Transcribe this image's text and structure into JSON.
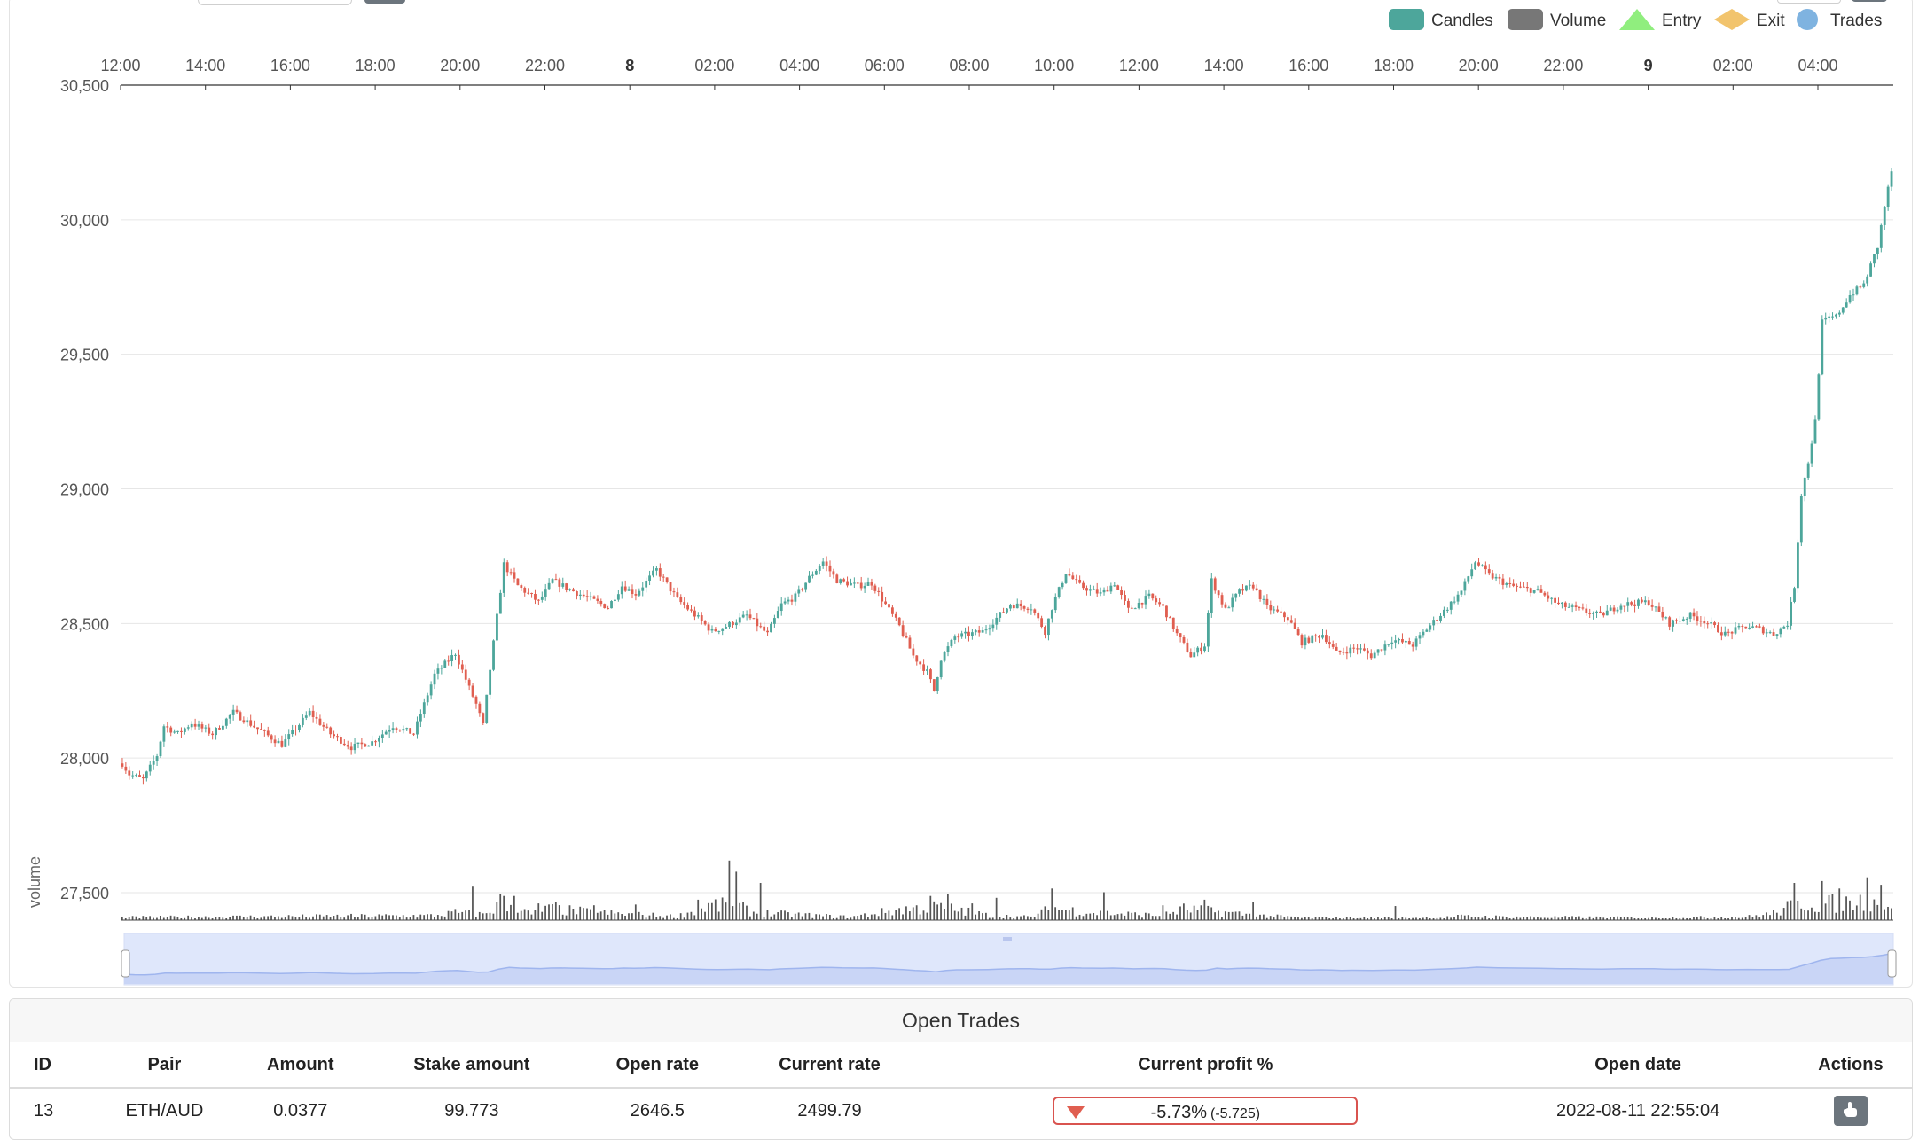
{
  "legend": [
    {
      "label": "Candles",
      "color": "#4da69b",
      "shape": "rect"
    },
    {
      "label": "Volume",
      "color": "#777777",
      "shape": "rect"
    },
    {
      "label": "Entry",
      "color": "#90ee7e",
      "shape": "triangle"
    },
    {
      "label": "Exit",
      "color": "#f2c46d",
      "shape": "diamond"
    },
    {
      "label": "Trades",
      "color": "#7fb3e0",
      "shape": "circle"
    }
  ],
  "colors": {
    "up": "#4da69b",
    "down": "#e05e50",
    "volume": "#555555",
    "zoom_fill": "#dfe7fb",
    "zoom_line": "#9fb5ee"
  },
  "chart_data": {
    "type": "candlestick",
    "x_tick_labels": [
      "12:00",
      "14:00",
      "16:00",
      "18:00",
      "20:00",
      "22:00",
      "8",
      "02:00",
      "04:00",
      "06:00",
      "08:00",
      "10:00",
      "12:00",
      "14:00",
      "16:00",
      "18:00",
      "20:00",
      "22:00",
      "9",
      "02:00",
      "04:00"
    ],
    "x_tick_bold": [
      false,
      false,
      false,
      false,
      false,
      false,
      true,
      false,
      false,
      false,
      false,
      false,
      false,
      false,
      false,
      false,
      false,
      false,
      true,
      false,
      false
    ],
    "ylim": [
      27400,
      30500
    ],
    "y_ticks": [
      27500,
      28000,
      28500,
      29000,
      29500,
      30000,
      30500
    ],
    "y_tick_labels": [
      "27,500",
      "28,000",
      "28,500",
      "29,000",
      "29,500",
      "30,000",
      "30,500"
    ],
    "volume_axis_label": "volume",
    "grid": true,
    "legend_position": "top-right",
    "bar_interval": "5m",
    "price_path": [
      [
        0,
        27980
      ],
      [
        2,
        27940
      ],
      [
        6,
        27920
      ],
      [
        10,
        28010
      ],
      [
        12,
        28120
      ],
      [
        16,
        28090
      ],
      [
        20,
        28130
      ],
      [
        26,
        28090
      ],
      [
        32,
        28170
      ],
      [
        40,
        28100
      ],
      [
        46,
        28050
      ],
      [
        50,
        28110
      ],
      [
        54,
        28170
      ],
      [
        60,
        28090
      ],
      [
        66,
        28040
      ],
      [
        72,
        28060
      ],
      [
        78,
        28120
      ],
      [
        84,
        28090
      ],
      [
        90,
        28310
      ],
      [
        96,
        28390
      ],
      [
        100,
        28260
      ],
      [
        102,
        28200
      ],
      [
        104,
        28120
      ],
      [
        106,
        28330
      ],
      [
        110,
        28720
      ],
      [
        114,
        28640
      ],
      [
        120,
        28580
      ],
      [
        124,
        28660
      ],
      [
        130,
        28620
      ],
      [
        140,
        28560
      ],
      [
        144,
        28640
      ],
      [
        148,
        28610
      ],
      [
        154,
        28700
      ],
      [
        160,
        28590
      ],
      [
        166,
        28520
      ],
      [
        170,
        28470
      ],
      [
        174,
        28490
      ],
      [
        180,
        28530
      ],
      [
        186,
        28460
      ],
      [
        190,
        28570
      ],
      [
        194,
        28600
      ],
      [
        198,
        28670
      ],
      [
        202,
        28730
      ],
      [
        206,
        28660
      ],
      [
        212,
        28640
      ],
      [
        216,
        28650
      ],
      [
        220,
        28570
      ],
      [
        224,
        28490
      ],
      [
        228,
        28380
      ],
      [
        232,
        28320
      ],
      [
        234,
        28250
      ],
      [
        236,
        28370
      ],
      [
        240,
        28450
      ],
      [
        248,
        28470
      ],
      [
        252,
        28520
      ],
      [
        256,
        28570
      ],
      [
        262,
        28560
      ],
      [
        266,
        28470
      ],
      [
        268,
        28560
      ],
      [
        272,
        28690
      ],
      [
        276,
        28640
      ],
      [
        282,
        28610
      ],
      [
        286,
        28650
      ],
      [
        290,
        28550
      ],
      [
        296,
        28600
      ],
      [
        300,
        28560
      ],
      [
        304,
        28460
      ],
      [
        308,
        28380
      ],
      [
        312,
        28420
      ],
      [
        314,
        28660
      ],
      [
        318,
        28550
      ],
      [
        322,
        28620
      ],
      [
        326,
        28640
      ],
      [
        330,
        28560
      ],
      [
        336,
        28520
      ],
      [
        340,
        28430
      ],
      [
        346,
        28460
      ],
      [
        350,
        28390
      ],
      [
        356,
        28410
      ],
      [
        360,
        28380
      ],
      [
        366,
        28440
      ],
      [
        372,
        28420
      ],
      [
        376,
        28480
      ],
      [
        382,
        28560
      ],
      [
        386,
        28620
      ],
      [
        390,
        28730
      ],
      [
        394,
        28680
      ],
      [
        400,
        28640
      ],
      [
        408,
        28620
      ],
      [
        414,
        28570
      ],
      [
        420,
        28550
      ],
      [
        426,
        28530
      ],
      [
        432,
        28570
      ],
      [
        440,
        28580
      ],
      [
        446,
        28500
      ],
      [
        452,
        28530
      ],
      [
        456,
        28510
      ],
      [
        462,
        28460
      ],
      [
        468,
        28490
      ],
      [
        472,
        28480
      ],
      [
        476,
        28460
      ],
      [
        480,
        28500
      ],
      [
        482,
        28640
      ],
      [
        484,
        28980
      ],
      [
        486,
        29100
      ],
      [
        488,
        29250
      ],
      [
        490,
        29620
      ],
      [
        494,
        29640
      ],
      [
        498,
        29720
      ],
      [
        502,
        29760
      ],
      [
        506,
        29900
      ],
      [
        508,
        30050
      ],
      [
        510,
        30180
      ]
    ],
    "volume_profile": [
      [
        0,
        0.07
      ],
      [
        90,
        0.12
      ],
      [
        96,
        0.2
      ],
      [
        104,
        0.15
      ],
      [
        110,
        0.45
      ],
      [
        118,
        0.15
      ],
      [
        122,
        0.3
      ],
      [
        140,
        0.18
      ],
      [
        160,
        0.1
      ],
      [
        170,
        0.4
      ],
      [
        178,
        0.35
      ],
      [
        182,
        0.2
      ],
      [
        200,
        0.12
      ],
      [
        210,
        0.08
      ],
      [
        224,
        0.28
      ],
      [
        236,
        0.35
      ],
      [
        250,
        0.12
      ],
      [
        262,
        0.08
      ],
      [
        268,
        0.32
      ],
      [
        280,
        0.2
      ],
      [
        300,
        0.12
      ],
      [
        306,
        0.3
      ],
      [
        316,
        0.22
      ],
      [
        328,
        0.12
      ],
      [
        340,
        0.06
      ],
      [
        380,
        0.06
      ],
      [
        386,
        0.1
      ],
      [
        400,
        0.08
      ],
      [
        440,
        0.06
      ],
      [
        468,
        0.08
      ],
      [
        476,
        0.18
      ],
      [
        484,
        0.48
      ],
      [
        490,
        0.42
      ],
      [
        500,
        0.5
      ],
      [
        510,
        0.42
      ]
    ],
    "volume_spikes": [
      [
        101,
        0.9
      ],
      [
        109,
        0.7
      ],
      [
        113,
        0.65
      ],
      [
        120,
        0.45
      ],
      [
        125,
        0.5
      ],
      [
        136,
        0.4
      ],
      [
        148,
        0.42
      ],
      [
        166,
        0.55
      ],
      [
        175,
        1.6
      ],
      [
        177,
        1.3
      ],
      [
        184,
        1.0
      ],
      [
        233,
        0.65
      ],
      [
        238,
        0.7
      ],
      [
        245,
        0.45
      ],
      [
        252,
        0.6
      ],
      [
        268,
        0.85
      ],
      [
        283,
        0.75
      ],
      [
        300,
        0.4
      ],
      [
        312,
        0.55
      ],
      [
        326,
        0.48
      ],
      [
        367,
        0.38
      ],
      [
        482,
        1.0
      ],
      [
        490,
        1.05
      ],
      [
        495,
        0.85
      ],
      [
        503,
        1.15
      ],
      [
        507,
        0.95
      ]
    ]
  },
  "open_trades": {
    "title": "Open Trades",
    "columns": [
      "ID",
      "Pair",
      "Amount",
      "Stake amount",
      "Open rate",
      "Current rate",
      "Current profit %",
      "Open date",
      "Actions"
    ],
    "rows": [
      {
        "id": "13",
        "pair": "ETH/AUD",
        "amount": "0.0377",
        "stake_amount": "99.773",
        "open_rate": "2646.5",
        "current_rate": "2499.79",
        "profit_pct": "-5.73%",
        "profit_abs": "(-5.725)",
        "open_date": "2022-08-11 22:55:04"
      }
    ]
  }
}
